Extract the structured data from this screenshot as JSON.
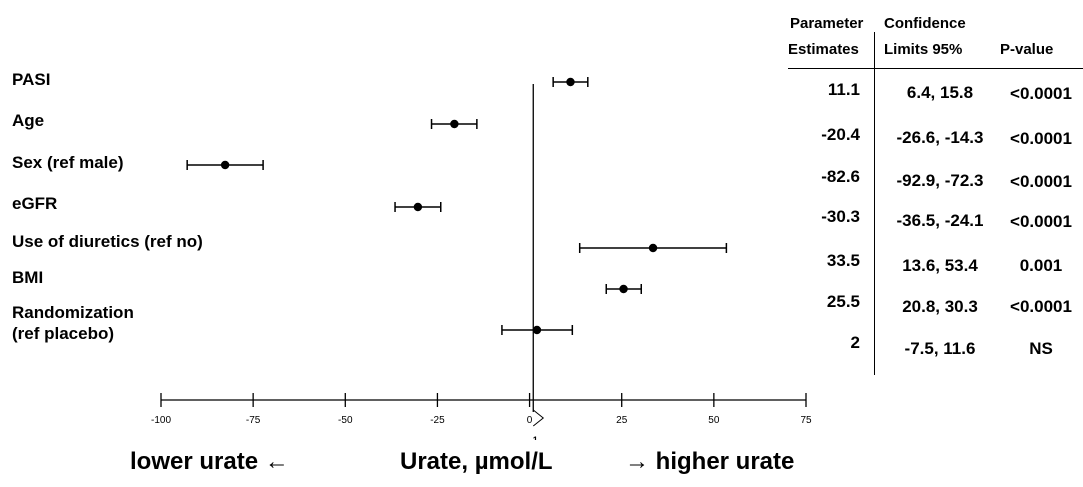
{
  "chart_data": {
    "type": "forest",
    "xlim": [
      -100,
      75
    ],
    "xticks": [
      -100,
      -75,
      -50,
      -25,
      0,
      25,
      50,
      75
    ],
    "reference_line_x": 1,
    "reference_label": "1",
    "grid": false,
    "rows": [
      {
        "label": "PASI",
        "estimate": 11.1,
        "lower": 6.4,
        "upper": 15.8,
        "estimate_text": "11.1",
        "ci_text": "6.4, 15.8",
        "p_text": "<0.0001"
      },
      {
        "label": "Age",
        "estimate": -20.4,
        "lower": -26.6,
        "upper": -14.3,
        "estimate_text": "-20.4",
        "ci_text": "-26.6, -14.3",
        "p_text": "<0.0001"
      },
      {
        "label": "Sex (ref male)",
        "estimate": -82.6,
        "lower": -92.9,
        "upper": -72.3,
        "estimate_text": "-82.6",
        "ci_text": "-92.9, -72.3",
        "p_text": "<0.0001"
      },
      {
        "label": "eGFR",
        "estimate": -30.3,
        "lower": -36.5,
        "upper": -24.1,
        "estimate_text": "-30.3",
        "ci_text": "-36.5, -24.1",
        "p_text": "<0.0001"
      },
      {
        "label": "Use of diuretics (ref no)",
        "estimate": 33.5,
        "lower": 13.6,
        "upper": 53.4,
        "estimate_text": "33.5",
        "ci_text": "13.6, 53.4",
        "p_text": "0.001"
      },
      {
        "label": "BMI",
        "estimate": 25.5,
        "lower": 20.8,
        "upper": 30.3,
        "estimate_text": "25.5",
        "ci_text": "20.8, 30.3",
        "p_text": "<0.0001"
      },
      {
        "label": "Randomization (ref placebo)",
        "label_lines": [
          "Randomization",
          "(ref placebo)"
        ],
        "estimate": 2,
        "lower": -7.5,
        "upper": 11.6,
        "estimate_text": "2",
        "ci_text": "-7.5, 11.6",
        "p_text": "NS"
      }
    ]
  },
  "table": {
    "col_estimate_header": [
      "Parameter",
      "Estimates"
    ],
    "col_ci_header": [
      "Confidence",
      "Limits 95%"
    ],
    "col_p_header": "P-value"
  },
  "captions": {
    "left": "lower urate ←",
    "center": "Urate, µmol/L",
    "right": "→ higher urate"
  },
  "colors": {
    "ink": "#000000",
    "background": "#ffffff"
  }
}
